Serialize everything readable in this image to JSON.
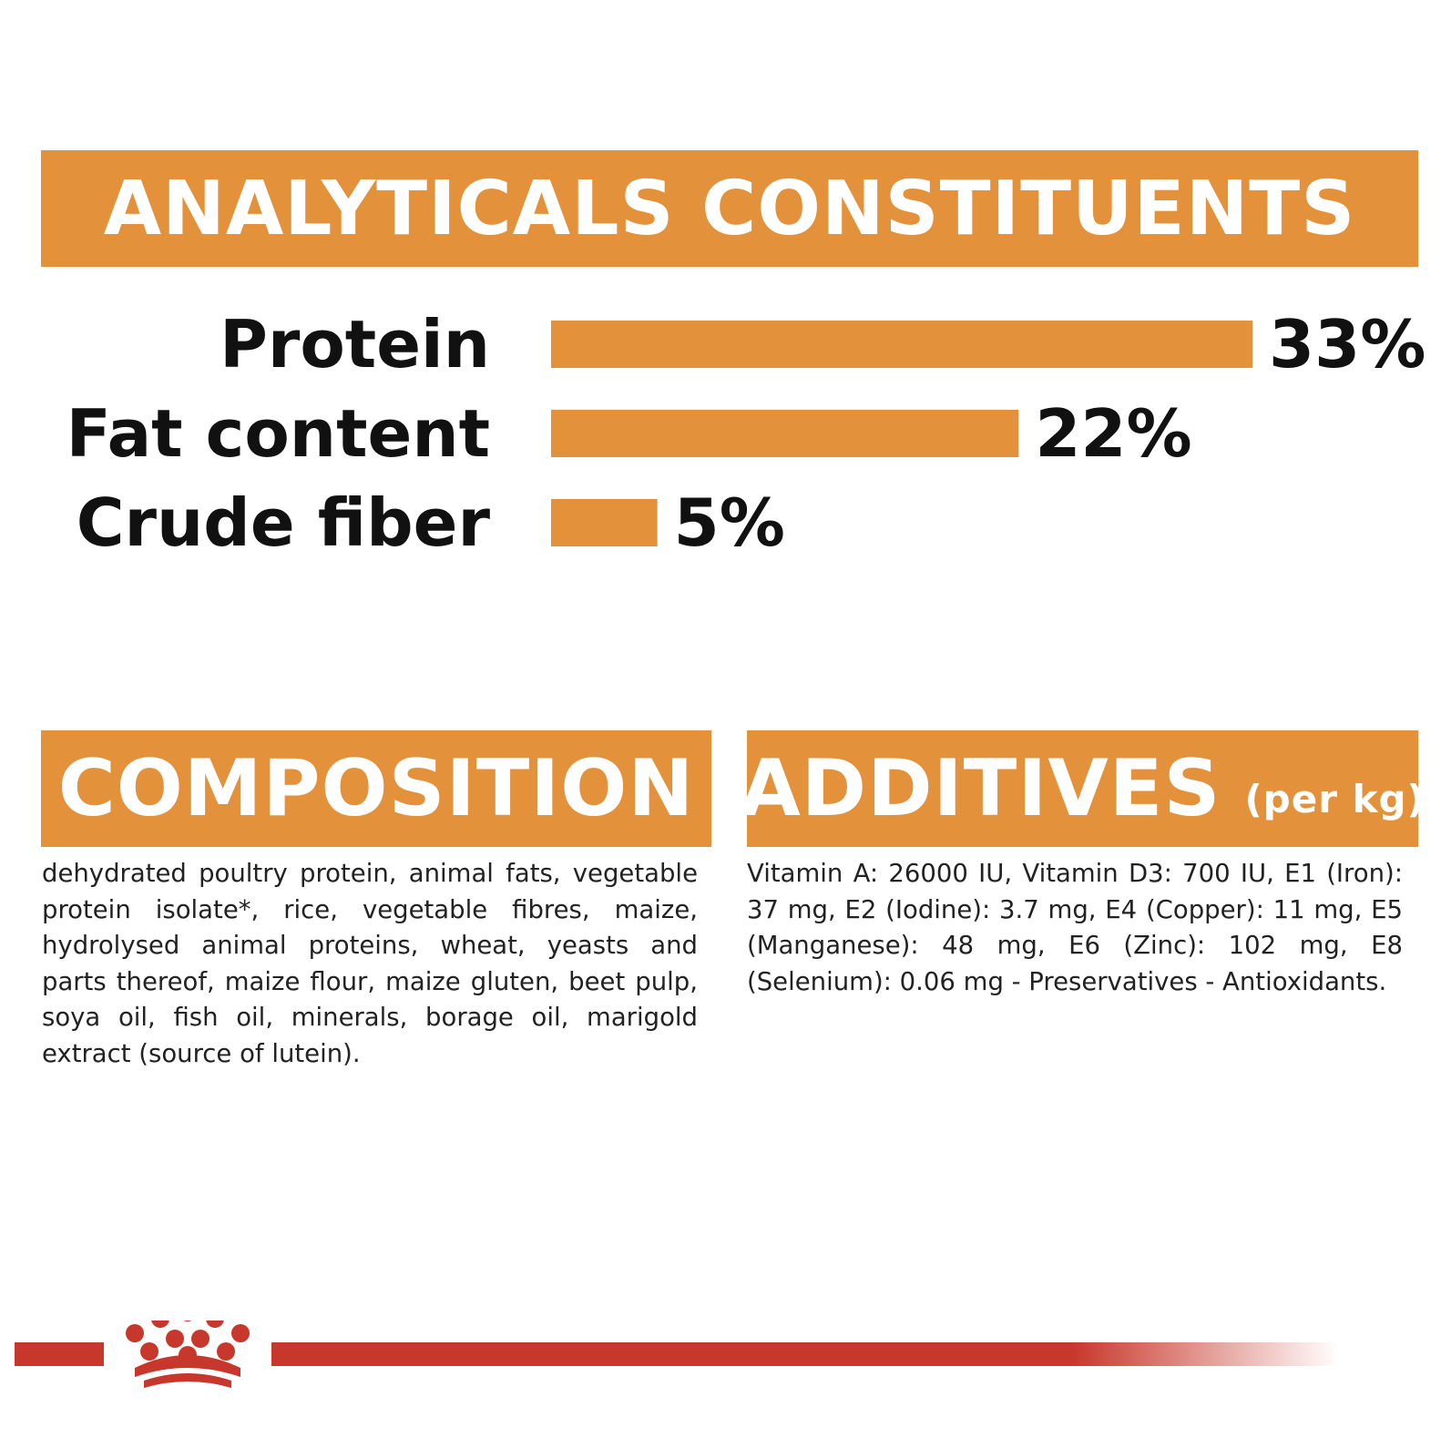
{
  "analytical": {
    "title": "ANALYTICALS CONSTITUENTS"
  },
  "chart_data": {
    "type": "bar",
    "orientation": "horizontal",
    "categories": [
      "Protein",
      "Fat content",
      "Crude fiber"
    ],
    "values": [
      33,
      22,
      5
    ],
    "value_labels": [
      "33%",
      "22%",
      "5%"
    ],
    "unit": "%",
    "title": "",
    "xlabel": "",
    "ylabel": "",
    "xlim": [
      0,
      33
    ],
    "grid": false,
    "bar_color": "#e3913a"
  },
  "composition": {
    "title": "COMPOSITION",
    "text": "dehydrated poultry protein, animal fats, vegetable protein isolate*, rice, vegetable fibres, maize, hydrolysed animal proteins, wheat, yeasts and parts thereof, maize flour, maize gluten, beet pulp, soya oil, fish oil, minerals, borage oil, marigold extract (source of lutein)."
  },
  "additives": {
    "title": "ADDITIVES",
    "subtitle": "(per kg)",
    "text": "Vitamin A: 26000 IU, Vitamin D3: 700 IU, E1 (Iron): 37 mg, E2 (Iodine): 3.7 mg, E4 (Copper): 11 mg, E5 (Manganese): 48 mg, E6 (Zinc): 102 mg, E8 (Selenium): 0.06 mg - Preservatives - Antioxidants."
  },
  "colors": {
    "accent": "#e3913a",
    "brand_red": "#c8372b"
  },
  "footer": {
    "logo_icon": "crown-icon"
  }
}
